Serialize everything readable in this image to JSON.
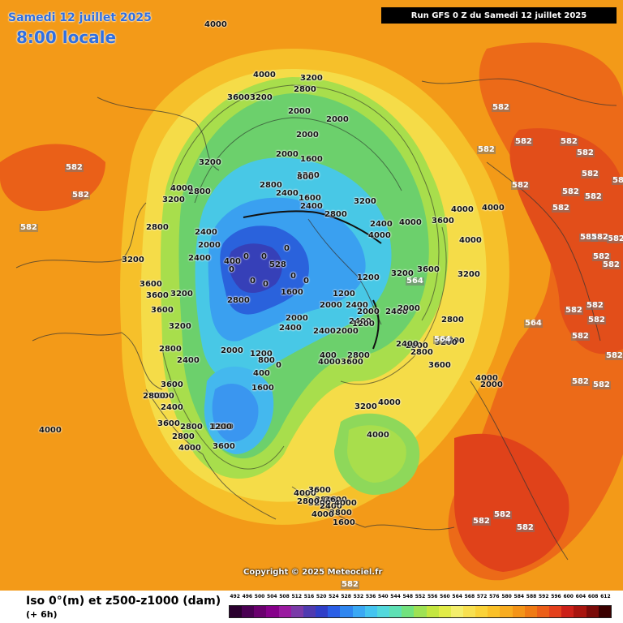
{
  "header": {
    "date": "Samedi 12 juillet 2025",
    "time": "8:00 locale",
    "run": "Run GFS 0 Z du Samedi 12 juillet 2025"
  },
  "copyright": "Copyright © 2025 Meteociel.fr",
  "footer": {
    "parameter": "Iso 0°(m) et z500-z1000 (dam)",
    "lead": "(+ 6h)"
  },
  "legend": {
    "values": [
      "492",
      "496",
      "500",
      "504",
      "508",
      "512",
      "516",
      "520",
      "524",
      "528",
      "532",
      "536",
      "540",
      "544",
      "548",
      "552",
      "556",
      "560",
      "564",
      "568",
      "572",
      "576",
      "580",
      "584",
      "588",
      "592",
      "596",
      "600",
      "604",
      "608",
      "612"
    ],
    "colors": [
      "#2a002e",
      "#4a0052",
      "#6a006e",
      "#86008a",
      "#9a1aa0",
      "#7a3aa8",
      "#4f3ab0",
      "#2f3ec8",
      "#2a5ee6",
      "#2f86f0",
      "#3aa8f4",
      "#44c4f0",
      "#52d8dc",
      "#5ee0b4",
      "#72e27e",
      "#9ee254",
      "#c4e640",
      "#e2ec48",
      "#f4ee6c",
      "#f8e050",
      "#fad238",
      "#fac028",
      "#f8ac20",
      "#f49418",
      "#f07a14",
      "#ec5e18",
      "#e4401c",
      "#cc2018",
      "#a8140e",
      "#7a0a08",
      "#3a0000"
    ]
  },
  "map": {
    "contour_labels": [
      {
        "t": "4000"
      },
      {
        "t": "4000"
      },
      {
        "t": "3600"
      },
      {
        "t": "3200"
      },
      {
        "t": "3200"
      },
      {
        "t": "2800"
      },
      {
        "t": "2800"
      },
      {
        "t": "2000"
      },
      {
        "t": "2000"
      },
      {
        "t": "2000"
      },
      {
        "t": "1600"
      },
      {
        "t": "1200"
      },
      {
        "t": "800"
      },
      {
        "t": "2800"
      },
      {
        "t": "2000"
      },
      {
        "t": "2400"
      },
      {
        "t": "1600"
      },
      {
        "t": "2400"
      },
      {
        "t": "2800"
      },
      {
        "t": "3200"
      },
      {
        "t": "4000"
      },
      {
        "t": "3200"
      },
      {
        "t": "3200"
      },
      {
        "t": "2800"
      },
      {
        "t": "2400"
      },
      {
        "t": "2400"
      },
      {
        "t": "2000"
      },
      {
        "t": "400"
      },
      {
        "t": "0"
      },
      {
        "t": "0"
      },
      {
        "t": "0"
      },
      {
        "t": "0"
      },
      {
        "t": "528"
      },
      {
        "t": "0"
      },
      {
        "t": "0"
      },
      {
        "t": "0"
      },
      {
        "t": "0"
      },
      {
        "t": "1200"
      },
      {
        "t": "2400"
      },
      {
        "t": "2000"
      },
      {
        "t": "1600"
      },
      {
        "t": "2000"
      },
      {
        "t": "2400"
      },
      {
        "t": "2800"
      },
      {
        "t": "3600"
      },
      {
        "t": "3600"
      },
      {
        "t": "3600"
      },
      {
        "t": "3200"
      },
      {
        "t": "2800"
      },
      {
        "t": "2400"
      },
      {
        "t": "2000"
      },
      {
        "t": "1200"
      },
      {
        "t": "400"
      },
      {
        "t": "0"
      },
      {
        "t": "3200"
      },
      {
        "t": "3600"
      },
      {
        "t": "1200"
      },
      {
        "t": "2400"
      },
      {
        "t": "2000"
      },
      {
        "t": "2800"
      },
      {
        "t": "2800"
      },
      {
        "t": "1600"
      },
      {
        "t": "1200"
      },
      {
        "t": "800"
      },
      {
        "t": "400"
      },
      {
        "t": "2800"
      },
      {
        "t": "3200"
      },
      {
        "t": "3600"
      },
      {
        "t": "4000"
      },
      {
        "t": "2800"
      },
      {
        "t": "2400"
      },
      {
        "t": "1200"
      },
      {
        "t": "2800"
      },
      {
        "t": "3600"
      },
      {
        "t": "4000"
      },
      {
        "t": "4000"
      },
      {
        "t": "3600"
      },
      {
        "t": "2800"
      },
      {
        "t": "3600"
      },
      {
        "t": "4000"
      },
      {
        "t": "4000"
      },
      {
        "t": "3200"
      },
      {
        "t": "2800"
      },
      {
        "t": "2400"
      },
      {
        "t": "2800"
      },
      {
        "t": "3200"
      },
      {
        "t": "3600"
      },
      {
        "t": "4000"
      },
      {
        "t": "4000"
      },
      {
        "t": "4000"
      },
      {
        "t": "3200"
      },
      {
        "t": "3600"
      },
      {
        "t": "4000"
      },
      {
        "t": "2000"
      },
      {
        "t": "2800"
      },
      {
        "t": "3200"
      },
      {
        "t": "2400"
      },
      {
        "t": "4000"
      },
      {
        "t": "4000"
      },
      {
        "t": "4000"
      },
      {
        "t": "3600"
      },
      {
        "t": "3200"
      },
      {
        "t": "2400"
      },
      {
        "t": "2800"
      },
      {
        "t": "1600"
      },
      {
        "t": "2000"
      },
      {
        "t": "2400"
      },
      {
        "t": "1200"
      },
      {
        "t": "2000"
      },
      {
        "t": "2400"
      },
      {
        "t": "2800"
      },
      {
        "t": "4000"
      },
      {
        "t": "4000"
      },
      {
        "t": "4000"
      },
      {
        "t": "3600"
      }
    ],
    "z500_labels": [
      "582",
      "582",
      "582",
      "582",
      "582",
      "582",
      "582",
      "582",
      "582",
      "582",
      "582",
      "582",
      "582",
      "582",
      "582",
      "582",
      "582",
      "582",
      "582",
      "582",
      "582",
      "582",
      "582",
      "582",
      "564",
      "564",
      "564",
      "582",
      "582",
      "582",
      "582",
      "582",
      "582"
    ]
  }
}
